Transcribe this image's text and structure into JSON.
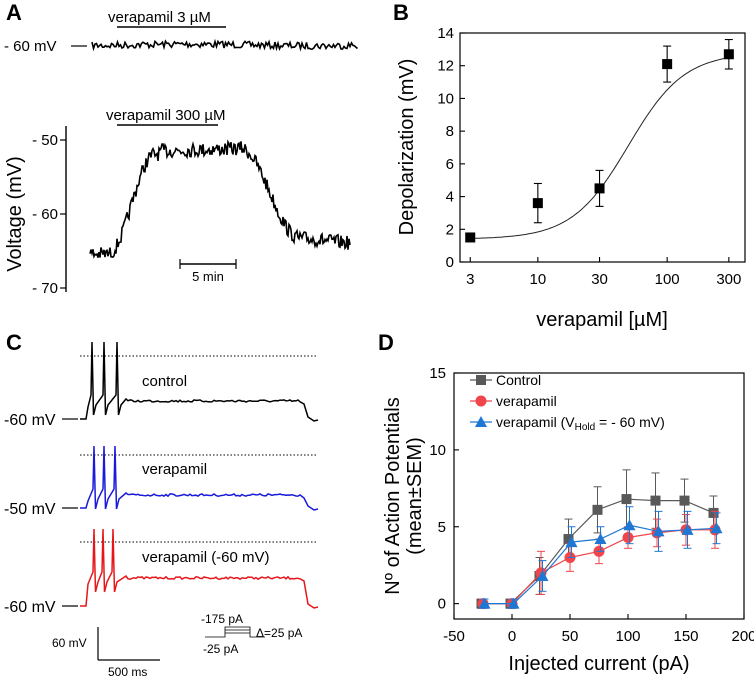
{
  "panels": {
    "A": {
      "label": "A",
      "top_trace_label": "verapamil 3 µM",
      "top_baseline_label": "- 60 mV",
      "bottom_trace_label": "verapamil 300 µM",
      "y_axis_title": "Voltage (mV)",
      "y_ticks": [
        "- 50",
        "- 60",
        "- 70"
      ],
      "scale_bar": "5 min"
    },
    "B": {
      "label": "B"
    },
    "C": {
      "label": "C",
      "traces": [
        {
          "name": "control",
          "baseline": "-60 mV",
          "color": "#000000"
        },
        {
          "name": "verapamil",
          "baseline": "-50 mV",
          "color": "#1a1adc"
        },
        {
          "name": "verapamil (-60 mV)",
          "baseline": "-60 mV",
          "color": "#e8161b"
        }
      ],
      "scale_voltage": "60 mV",
      "scale_time": "500 ms",
      "protocol": {
        "top": "-175 pA",
        "bottom": "-25 pA",
        "step": "Δ=25 pA"
      }
    },
    "D": {
      "label": "D"
    }
  },
  "chart_data": [
    {
      "id": "B",
      "type": "scatter",
      "title": "",
      "xlabel": "verapamil [µM]",
      "ylabel": "Depolarization (mV)",
      "xscale": "log",
      "xlim": [
        2.5,
        400
      ],
      "ylim": [
        0,
        14
      ],
      "x_ticks": [
        3,
        10,
        30,
        100,
        300
      ],
      "x_tick_labels": [
        "3",
        "10",
        "30",
        "100",
        "300"
      ],
      "y_ticks": [
        0,
        2,
        4,
        6,
        8,
        10,
        12,
        14
      ],
      "y_tick_labels": [
        "0",
        "2",
        "4",
        "6",
        "8",
        "10",
        "12",
        "14"
      ],
      "x": [
        3,
        10,
        30,
        100,
        300
      ],
      "y": [
        1.5,
        3.6,
        4.5,
        12.1,
        12.7
      ],
      "err": [
        0.0,
        1.2,
        1.1,
        1.1,
        0.9
      ],
      "fit": {
        "model": "hill",
        "bottom": 1.4,
        "top": 12.8,
        "ec50": 50,
        "hill": 2.0
      },
      "marker_color": "#000000"
    },
    {
      "id": "D",
      "type": "line",
      "title": "",
      "xlabel": "Injected current (pA)",
      "ylabel": "Nº of Action Potentials (mean±SEM)",
      "ylabel_lines": [
        "Nº of Action Potentials",
        "(mean±SEM)"
      ],
      "xlim": [
        -50,
        200
      ],
      "ylim": [
        -1,
        15
      ],
      "x_ticks": [
        -50,
        0,
        50,
        100,
        150,
        200
      ],
      "x_tick_labels": [
        "-50",
        "0",
        "50",
        "100",
        "150",
        "200"
      ],
      "y_ticks": [
        0,
        5,
        10,
        15
      ],
      "y_tick_labels": [
        "0",
        "5",
        "10",
        "15"
      ],
      "x": [
        -25,
        0,
        25,
        50,
        75,
        100,
        125,
        150,
        175
      ],
      "legend_position": "top-left",
      "series": [
        {
          "name": "Control",
          "color": "#595959",
          "marker": "square",
          "values": [
            0,
            0,
            1.8,
            4.2,
            6.1,
            6.8,
            6.7,
            6.7,
            5.9
          ],
          "err": [
            0.3,
            0.3,
            1.2,
            1.3,
            1.5,
            1.9,
            1.8,
            1.4,
            1.1
          ]
        },
        {
          "name": "verapamil",
          "color": "#f0454a",
          "marker": "circle",
          "values": [
            0,
            0,
            2.0,
            3.0,
            3.4,
            4.3,
            4.6,
            4.8,
            4.8
          ],
          "err": [
            0.3,
            0.3,
            1.4,
            0.9,
            0.8,
            0.7,
            0.9,
            1.0,
            1.2
          ]
        },
        {
          "name": "verapamil (VHold = - 60 mV)",
          "legend_main": "verapamil (V",
          "legend_sub": "Hold",
          "legend_tail": " = - 60 mV)",
          "color": "#1f77d4",
          "marker": "triangle",
          "values": [
            0,
            0,
            1.8,
            4.0,
            4.2,
            5.1,
            4.7,
            4.8,
            4.9
          ],
          "err": [
            0.3,
            0.3,
            1.0,
            1.0,
            0.8,
            1.2,
            1.3,
            1.2,
            1.0
          ]
        }
      ]
    }
  ]
}
